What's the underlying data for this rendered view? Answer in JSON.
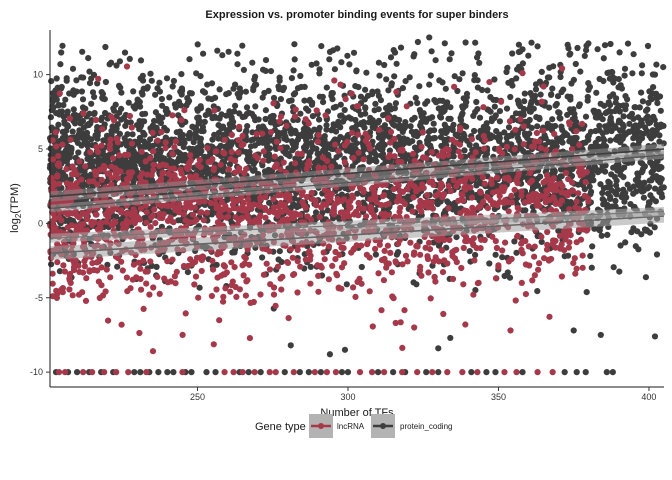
{
  "chart_data": {
    "type": "scatter",
    "title": "Expression vs. promoter binding events for super binders",
    "xlabel": "Number of TFs",
    "ylabel_main": "log",
    "ylabel_sub": "2",
    "ylabel_tail": "(TPM)",
    "xlim": [
      201,
      405
    ],
    "ylim": [
      -11.0,
      13.0
    ],
    "x_ticks": [
      250,
      300,
      350,
      400
    ],
    "y_ticks": [
      -10,
      -5,
      0,
      5,
      10
    ],
    "x_tick_labels": [
      "250",
      "300",
      "350",
      "400"
    ],
    "y_tick_labels": [
      "-10",
      "-5",
      "0",
      "5",
      "10"
    ],
    "grid": false,
    "legend": {
      "title": "Gene type",
      "position": "bottom",
      "entries": [
        "lncRNA",
        "protein_coding"
      ]
    },
    "series": [
      {
        "name": "protein_coding",
        "color": "#3d3d3d",
        "point_distribution": {
          "x_range": [
            201,
            405
          ],
          "y_mean_at_x": [
            [
              201,
              3.6
            ],
            [
              405,
              4.8
            ]
          ],
          "y_sd": 3.0,
          "floor_value": -10,
          "n_points": 3800
        },
        "trend_line": [
          [
            201,
            1.8
          ],
          [
            405,
            5.0
          ]
        ],
        "trend_line_lower_group": [
          [
            201,
            1.0
          ],
          [
            405,
            4.6
          ]
        ]
      },
      {
        "name": "lncRNA",
        "color": "#a5394a",
        "point_distribution": {
          "x_range": [
            201,
            380
          ],
          "y_mean_at_x": [
            [
              201,
              0.4
            ],
            [
              380,
              1.2
            ]
          ],
          "y_sd": 2.8,
          "floor_value": -10,
          "n_points": 1700
        },
        "trend_line": [
          [
            201,
            -2.0
          ],
          [
            405,
            0.5
          ]
        ],
        "trend_line_upper": [
          [
            201,
            -1.0
          ],
          [
            405,
            0.8
          ]
        ]
      }
    ],
    "outliers": {
      "protein_coding": [
        [
          327,
          12.5
        ],
        [
          373,
          12.0
        ],
        [
          363,
          11.9
        ],
        [
          358,
          11.7
        ],
        [
          385,
          11.1
        ],
        [
          402,
          10.0
        ],
        [
          212,
          9.8
        ]
      ],
      "lncRNA": [
        [
          347,
          9.5
        ],
        [
          358,
          10.1
        ],
        [
          365,
          9.2
        ],
        [
          322,
          -7.0
        ],
        [
          354,
          -7.2
        ],
        [
          339,
          -6.8
        ]
      ],
      "low_protein_coding": [
        [
          281,
          -8.2
        ],
        [
          294,
          -8.8
        ],
        [
          299,
          -8.5
        ],
        [
          330,
          -8.4
        ],
        [
          402,
          -7.6
        ],
        [
          384,
          -7.5
        ],
        [
          334,
          -7.7
        ],
        [
          375,
          -7.2
        ]
      ]
    },
    "floor_points": {
      "protein_coding_x": [
        203,
        207,
        210,
        214,
        218,
        222,
        229,
        231,
        234,
        237,
        240,
        242,
        246,
        248,
        253,
        256,
        264,
        267,
        271,
        279,
        284,
        287,
        291,
        298,
        300,
        310,
        315,
        319,
        326,
        330,
        341,
        346,
        349,
        358,
        372,
        376,
        379,
        386,
        388
      ],
      "lncRNA_x": [
        204,
        206,
        212,
        215,
        219,
        223,
        227,
        233,
        245,
        259,
        262,
        265,
        269,
        274,
        276,
        282,
        289,
        293,
        296,
        304,
        308,
        312,
        318,
        323,
        328,
        333,
        338,
        343,
        352,
        356,
        363,
        368
      ]
    }
  }
}
